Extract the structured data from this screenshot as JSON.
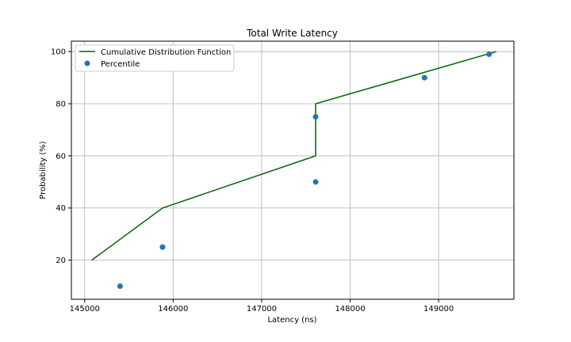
{
  "chart_data": {
    "type": "line",
    "title": "Total Write Latency",
    "xlabel": "Latency (ns)",
    "ylabel": "Probability (%)",
    "xlim": [
      144850,
      149850
    ],
    "ylim": [
      5,
      104
    ],
    "xticks": [
      145000,
      146000,
      147000,
      148000,
      149000
    ],
    "yticks": [
      20,
      40,
      60,
      80,
      100
    ],
    "grid": true,
    "legend_position": "top-left",
    "series": [
      {
        "name": "Cumulative Distribution Function",
        "kind": "line",
        "color": "#006400",
        "x": [
          145080,
          145880,
          147610,
          147610,
          149650
        ],
        "y": [
          20,
          40,
          60,
          80,
          100
        ]
      },
      {
        "name": "Percentile",
        "kind": "scatter",
        "color": "#1f77b4",
        "x": [
          145400,
          145880,
          147610,
          147610,
          148840,
          149570
        ],
        "y": [
          10,
          25,
          50,
          75,
          90,
          99
        ]
      }
    ]
  }
}
